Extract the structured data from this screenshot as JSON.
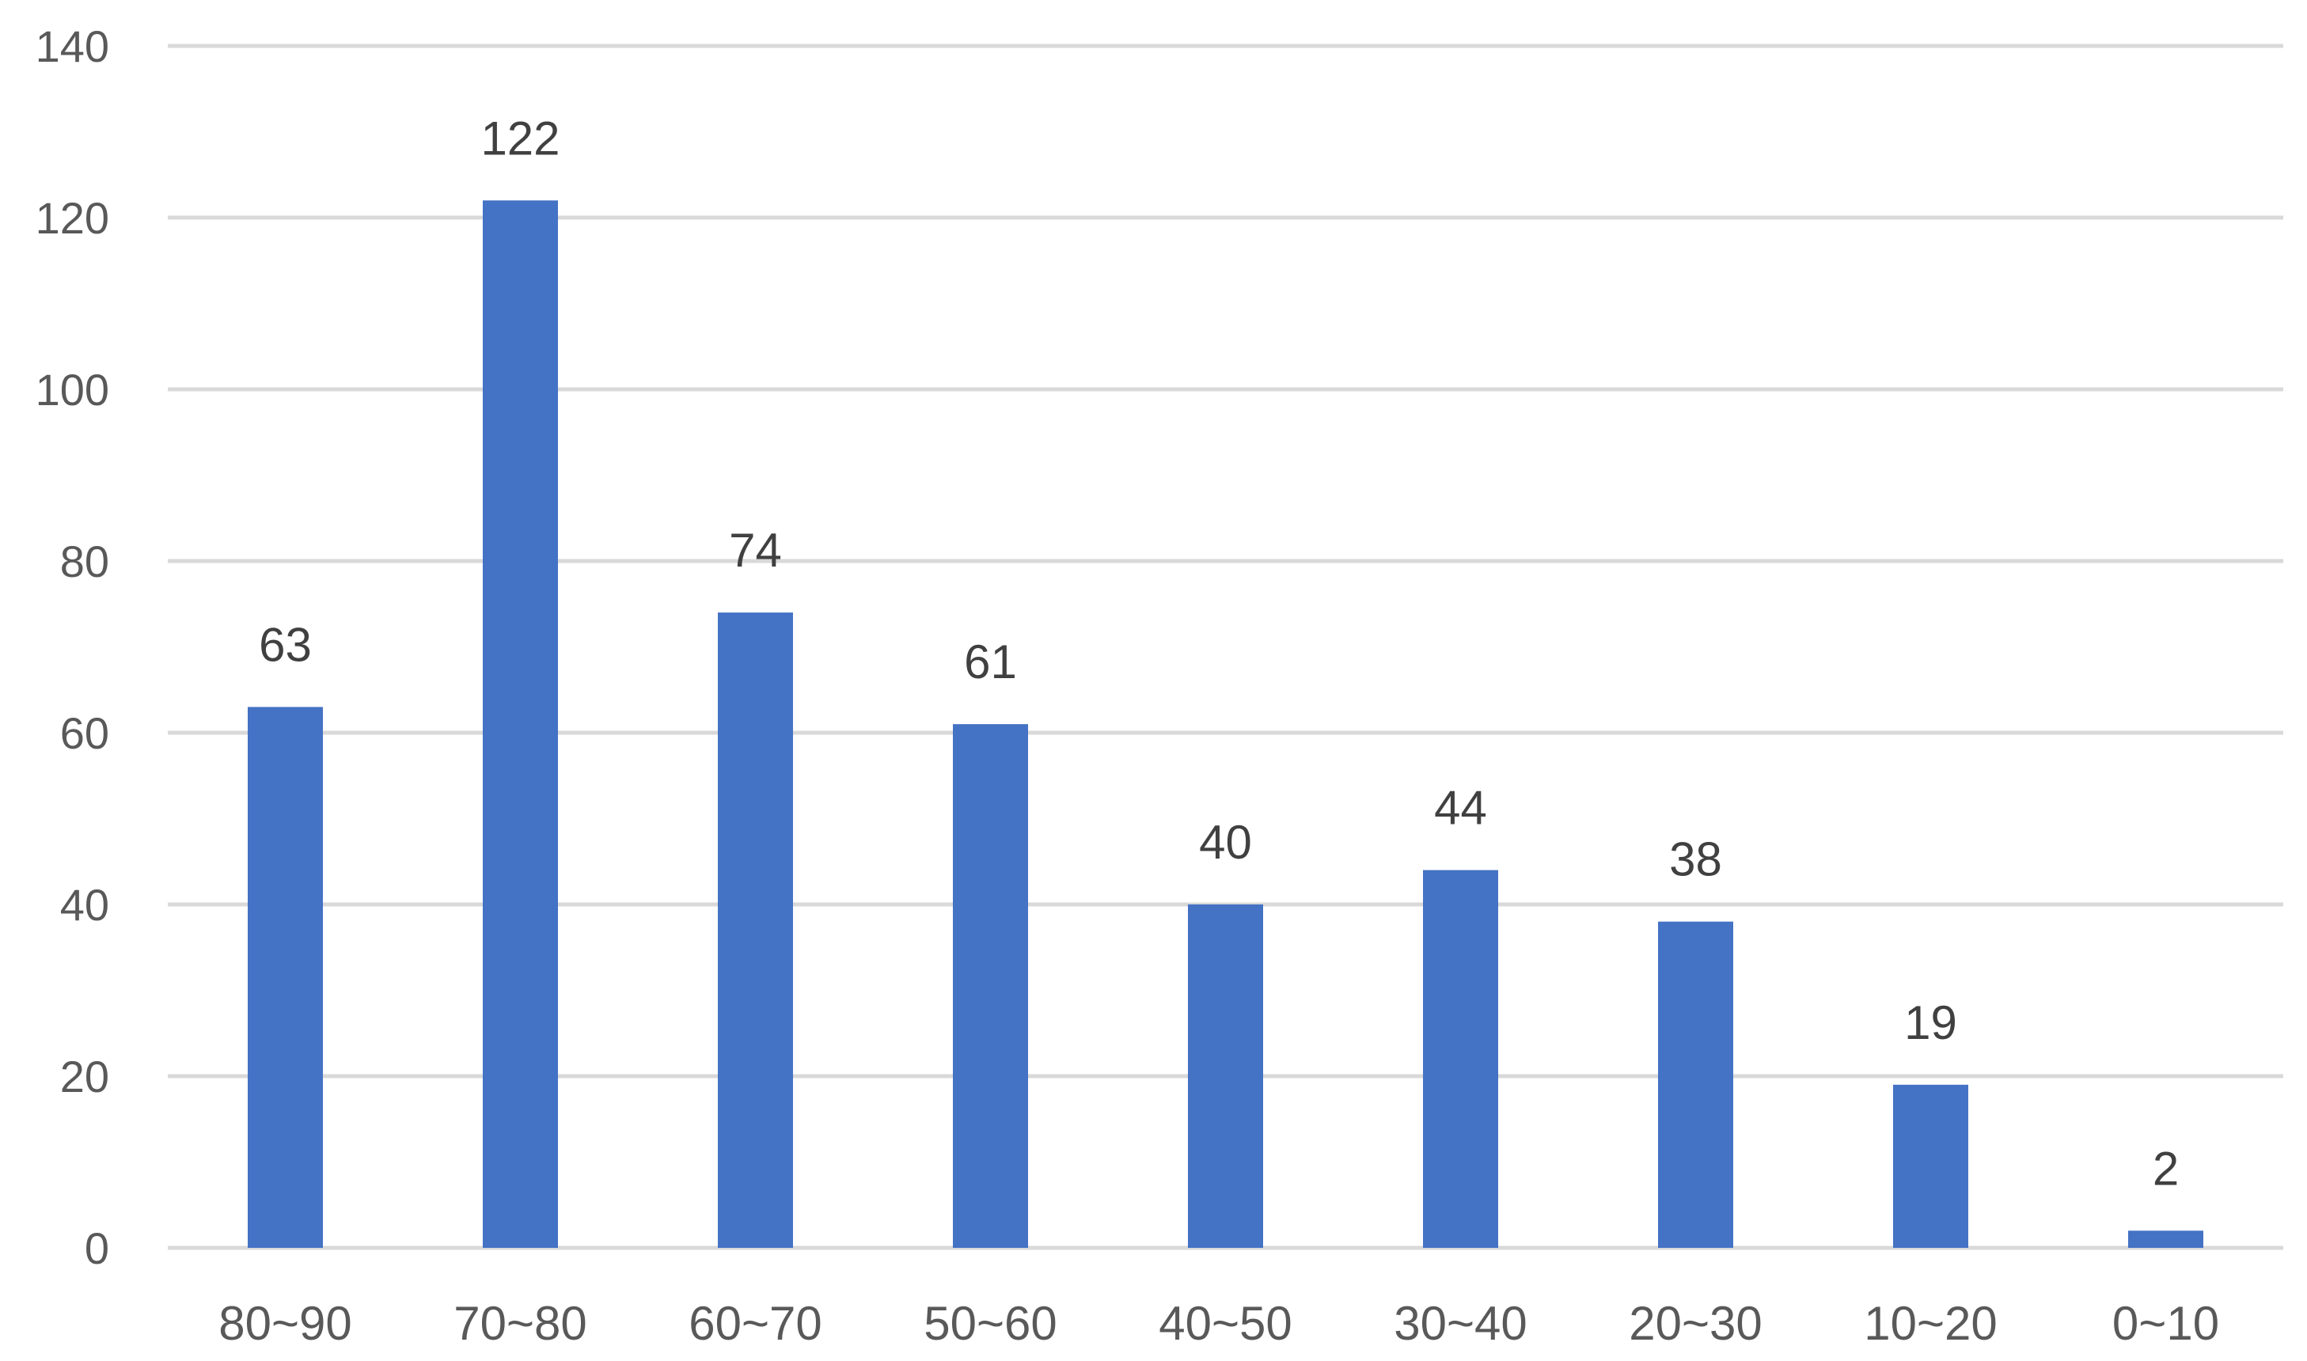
{
  "chart_data": {
    "type": "bar",
    "categories": [
      "80~90",
      "70~80",
      "60~70",
      "50~60",
      "40~50",
      "30~40",
      "20~30",
      "10~20",
      "0~10"
    ],
    "series": [
      {
        "values": [
          63,
          122,
          74,
          61,
          40,
          44,
          38,
          19,
          2
        ],
        "color": "#4472C4"
      }
    ],
    "data_labels": [
      "63",
      "122",
      "74",
      "61",
      "40",
      "44",
      "38",
      "19",
      "2"
    ],
    "title": "",
    "xlabel": "",
    "ylabel": "",
    "ylim": [
      0,
      140
    ],
    "yticks": [
      0,
      20,
      40,
      60,
      80,
      100,
      120,
      140
    ],
    "ytick_labels": [
      "0",
      "20",
      "40",
      "60",
      "80",
      "100",
      "120",
      "140"
    ],
    "grid": true,
    "grid_color": "#D9D9D9",
    "legend": "none"
  }
}
